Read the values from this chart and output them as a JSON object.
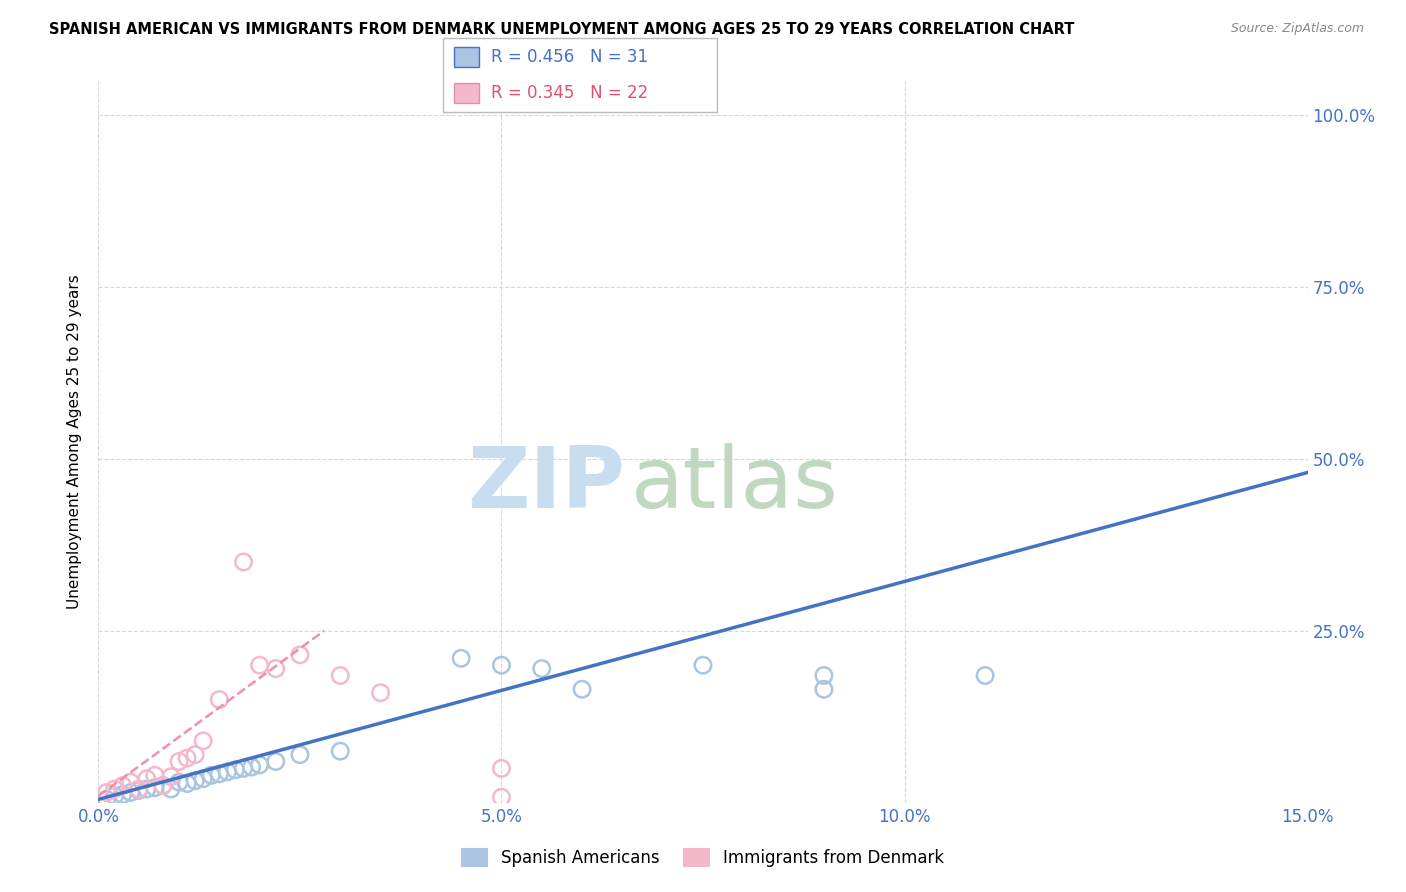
{
  "title": "SPANISH AMERICAN VS IMMIGRANTS FROM DENMARK UNEMPLOYMENT AMONG AGES 25 TO 29 YEARS CORRELATION CHART",
  "source": "Source: ZipAtlas.com",
  "ylabel": "Unemployment Among Ages 25 to 29 years",
  "xlim": [
    0.0,
    0.15
  ],
  "ylim": [
    0.0,
    1.05
  ],
  "xticks": [
    0.0,
    0.05,
    0.1,
    0.15
  ],
  "xticklabels": [
    "0.0%",
    "5.0%",
    "10.0%",
    "15.0%"
  ],
  "yticks": [
    0.0,
    0.25,
    0.5,
    0.75,
    1.0
  ],
  "yticklabels": [
    "",
    "25.0%",
    "50.0%",
    "75.0%",
    "100.0%"
  ],
  "blue_R": "R = 0.456",
  "blue_N": "N = 31",
  "pink_R": "R = 0.345",
  "pink_N": "N = 22",
  "blue_color": "#aac4e2",
  "pink_color": "#f5b8ca",
  "blue_line_color": "#4472c4",
  "pink_line_color": "#f090a8",
  "grid_color": "#d8d8d8",
  "watermark_zip_color": "#c8ddf0",
  "watermark_atlas_color": "#c0d8c0",
  "blue_scatter_x": [
    0.001,
    0.002,
    0.003,
    0.004,
    0.005,
    0.006,
    0.007,
    0.008,
    0.009,
    0.01,
    0.011,
    0.012,
    0.013,
    0.014,
    0.015,
    0.016,
    0.017,
    0.018,
    0.019,
    0.02,
    0.022,
    0.025,
    0.03,
    0.045,
    0.05,
    0.055,
    0.06,
    0.075,
    0.09,
    0.11,
    0.09
  ],
  "blue_scatter_y": [
    0.005,
    0.01,
    0.012,
    0.015,
    0.018,
    0.02,
    0.022,
    0.025,
    0.02,
    0.03,
    0.028,
    0.032,
    0.035,
    0.04,
    0.042,
    0.045,
    0.048,
    0.05,
    0.052,
    0.055,
    0.06,
    0.07,
    0.075,
    0.21,
    0.2,
    0.195,
    0.165,
    0.2,
    0.185,
    0.185,
    0.165
  ],
  "pink_scatter_x": [
    0.001,
    0.002,
    0.003,
    0.004,
    0.005,
    0.006,
    0.007,
    0.008,
    0.009,
    0.01,
    0.011,
    0.012,
    0.013,
    0.015,
    0.018,
    0.02,
    0.022,
    0.025,
    0.03,
    0.035,
    0.05,
    0.05
  ],
  "pink_scatter_y": [
    0.015,
    0.02,
    0.025,
    0.03,
    0.02,
    0.035,
    0.04,
    0.025,
    0.038,
    0.06,
    0.065,
    0.07,
    0.09,
    0.15,
    0.35,
    0.2,
    0.195,
    0.215,
    0.185,
    0.16,
    0.008,
    0.05
  ],
  "blue_line_x": [
    0.0,
    0.15
  ],
  "blue_line_y": [
    0.005,
    0.48
  ],
  "pink_line_x": [
    0.0,
    0.028
  ],
  "pink_line_y": [
    0.01,
    0.25
  ],
  "legend_entries": [
    {
      "R": "R = 0.456",
      "N": "N = 31",
      "color": "#4472c4",
      "face": "#aac4e2"
    },
    {
      "R": "R = 0.345",
      "N": "N = 22",
      "color": "#e05070",
      "face": "#f5b8ca"
    }
  ]
}
